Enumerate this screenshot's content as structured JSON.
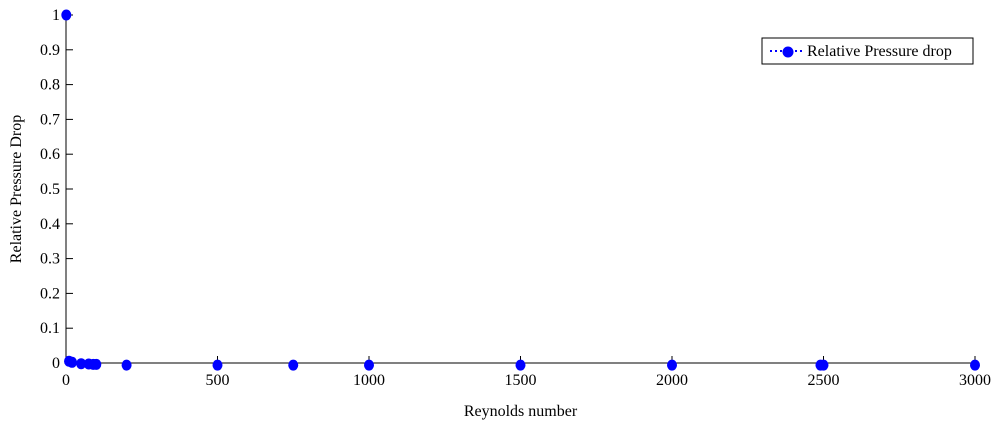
{
  "chart_data": {
    "type": "scatter",
    "title": "",
    "xlabel": "Reynolds number",
    "ylabel": "Relative Pressure Drop",
    "xlim": [
      0,
      3000
    ],
    "ylim": [
      0,
      1
    ],
    "xticks": [
      0,
      500,
      1000,
      1500,
      2000,
      2500,
      3000
    ],
    "yticks": [
      0,
      0.1,
      0.2,
      0.3,
      0.4,
      0.5,
      0.6,
      0.7,
      0.8,
      0.9,
      1
    ],
    "xtick_labels": [
      "0",
      "500",
      "1000",
      "1500",
      "2000",
      "2500",
      "3000"
    ],
    "ytick_labels": [
      "0",
      "0.1",
      "0.2",
      "0.3",
      "0.4",
      "0.5",
      "0.6",
      "0.7",
      "0.8",
      "0.9",
      "1"
    ],
    "grid": false,
    "legend_position": "top-right",
    "series": [
      {
        "name": "Relative Pressure drop",
        "color": "#0000ff",
        "x": [
          1,
          10,
          20,
          50,
          75,
          90,
          100,
          200,
          500,
          750,
          1000,
          1500,
          2000,
          2490,
          2500,
          3000
        ],
        "y": [
          1,
          0.005,
          0.002,
          -0.002,
          -0.003,
          -0.004,
          -0.004,
          -0.006,
          -0.006,
          -0.006,
          -0.006,
          -0.006,
          -0.006,
          -0.006,
          -0.006,
          -0.006
        ]
      }
    ]
  }
}
